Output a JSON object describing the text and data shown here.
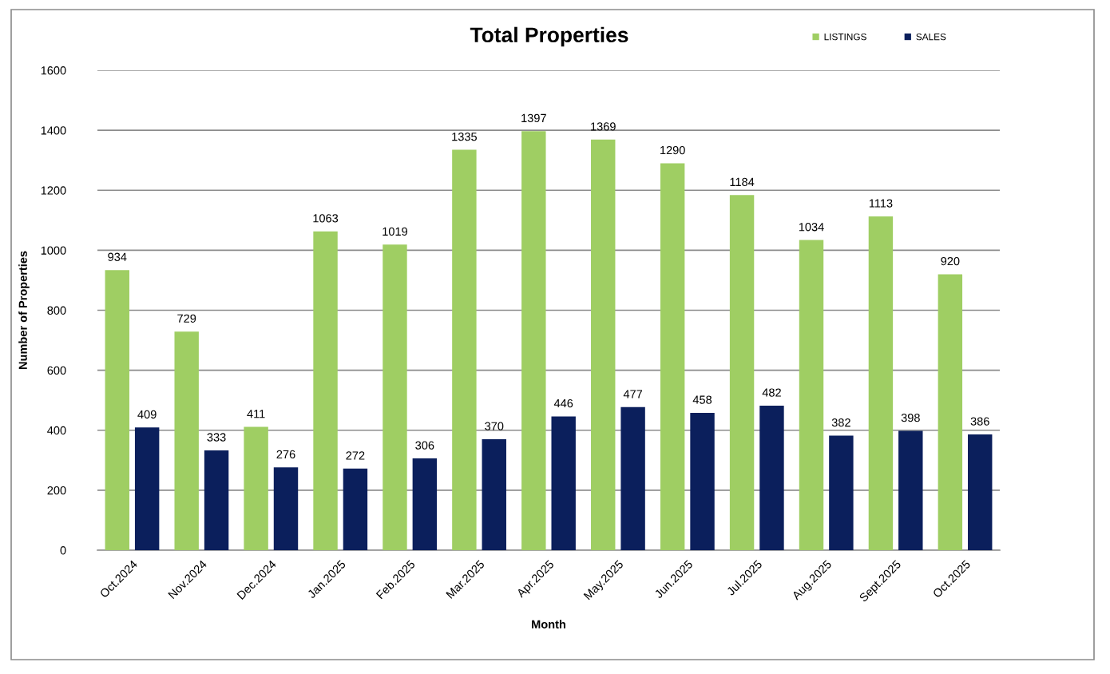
{
  "chart_data": {
    "type": "bar",
    "title": "Total Properties",
    "xlabel": "Month",
    "ylabel": "Number of Properties",
    "categories": [
      "Oct.2024",
      "Nov.2024",
      "Dec.2024",
      "Jan.2025",
      "Feb.2025",
      "Mar.2025",
      "Apr.2025",
      "May.2025",
      "Jun.2025",
      "Jul.2025",
      "Aug.2025",
      "Sept.2025",
      "Oct.2025"
    ],
    "series": [
      {
        "name": "LISTINGS",
        "color": "#9fce63",
        "values": [
          934,
          729,
          411,
          1063,
          1019,
          1335,
          1397,
          1369,
          1290,
          1184,
          1034,
          1113,
          920
        ]
      },
      {
        "name": "SALES",
        "color": "#0b1f5c",
        "values": [
          409,
          333,
          276,
          272,
          306,
          370,
          446,
          477,
          458,
          482,
          382,
          398,
          386
        ]
      }
    ],
    "ylim": [
      0,
      1600
    ],
    "yticks": [
      0,
      200,
      400,
      600,
      800,
      1000,
      1200,
      1400,
      1600
    ],
    "grid": "y",
    "legend": "top right",
    "data_labels": true
  }
}
